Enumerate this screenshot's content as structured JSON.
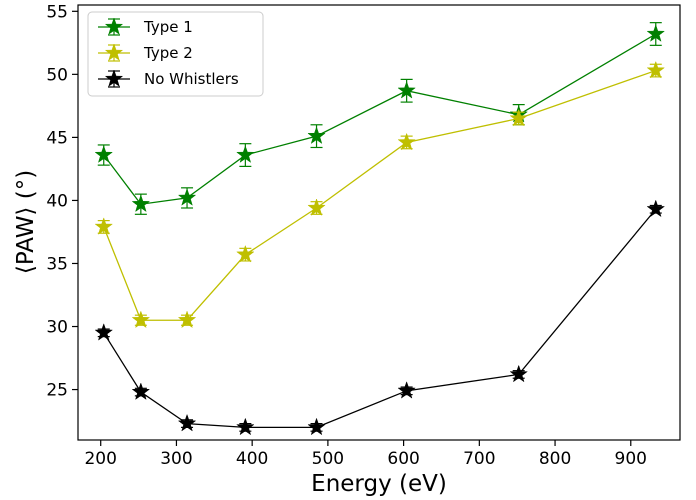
{
  "chart_data": {
    "type": "line",
    "title": "",
    "xlabel": "Energy (eV)",
    "ylabel": "⟨PAW⟩ (°)",
    "xlim": [
      170,
      965
    ],
    "ylim": [
      21,
      55.5
    ],
    "xticks": [
      200,
      300,
      400,
      500,
      600,
      700,
      800,
      900
    ],
    "yticks": [
      25,
      30,
      35,
      40,
      45,
      50,
      55
    ],
    "x": [
      204,
      253,
      314,
      391,
      485,
      604,
      752,
      933
    ],
    "grid": false,
    "legend_position": "top-left",
    "marker": "star",
    "series": [
      {
        "name": "Type 1",
        "color": "#008000",
        "values": [
          43.6,
          39.7,
          40.2,
          43.6,
          45.1,
          48.7,
          46.8,
          53.2
        ],
        "errors": [
          0.8,
          0.8,
          0.8,
          0.9,
          0.9,
          0.9,
          0.8,
          0.9
        ]
      },
      {
        "name": "Type 2",
        "color": "#bfbf00",
        "values": [
          37.9,
          30.5,
          30.5,
          35.7,
          39.4,
          44.6,
          46.5,
          50.3
        ],
        "errors": [
          0.5,
          0.4,
          0.4,
          0.5,
          0.5,
          0.5,
          0.5,
          0.5
        ]
      },
      {
        "name": "No Whistlers",
        "color": "#000000",
        "values": [
          29.5,
          24.8,
          22.3,
          22.0,
          22.0,
          24.9,
          26.2,
          39.3
        ],
        "errors": [
          0.3,
          0.3,
          0.3,
          0.3,
          0.3,
          0.3,
          0.3,
          0.3
        ]
      }
    ]
  }
}
